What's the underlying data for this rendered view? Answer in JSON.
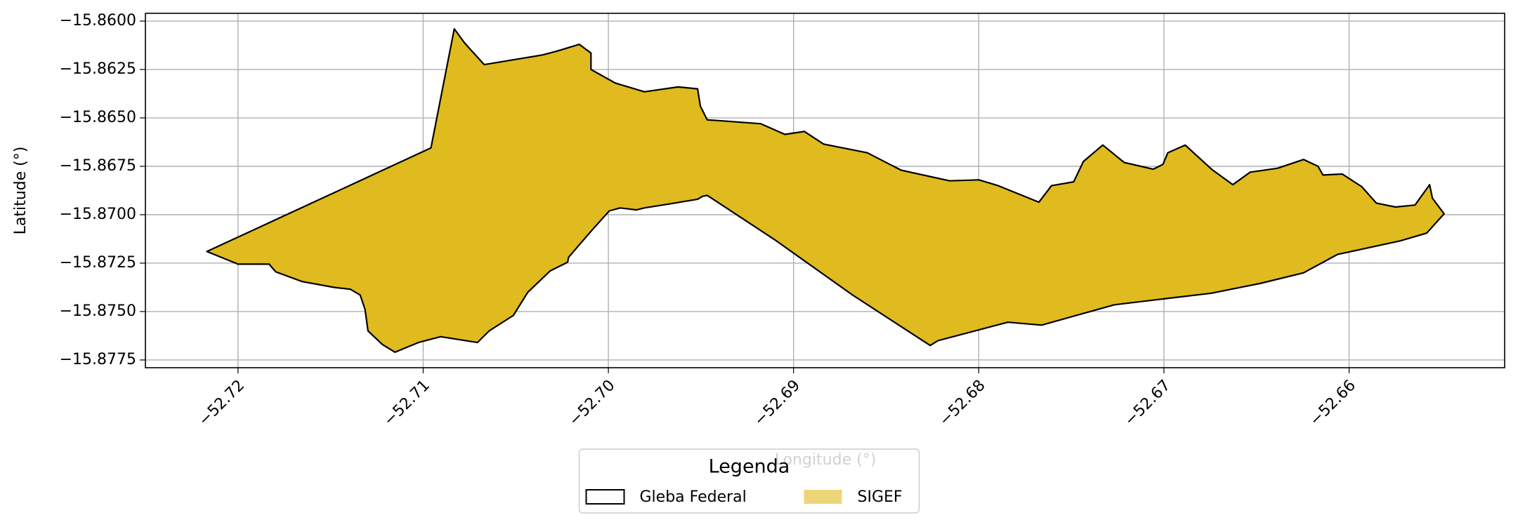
{
  "chart_data": {
    "type": "polygon",
    "xlabel": "Longitude (°)",
    "ylabel": "Latitude (°)",
    "xlim": [
      -52.725,
      -52.6516
    ],
    "ylim": [
      -15.8779,
      -15.8596
    ],
    "xticks": [
      {
        "value": -52.72,
        "label": "−52.72"
      },
      {
        "value": -52.71,
        "label": "−52.71"
      },
      {
        "value": -52.7,
        "label": "−52.70"
      },
      {
        "value": -52.69,
        "label": "−52.69"
      },
      {
        "value": -52.68,
        "label": "−52.68"
      },
      {
        "value": -52.67,
        "label": "−52.67"
      },
      {
        "value": -52.66,
        "label": "−52.66"
      }
    ],
    "yticks": [
      {
        "value": -15.86,
        "label": "−15.8600"
      },
      {
        "value": -15.8625,
        "label": "−15.8625"
      },
      {
        "value": -15.865,
        "label": "−15.8650"
      },
      {
        "value": -15.8675,
        "label": "−15.8675"
      },
      {
        "value": -15.87,
        "label": "−15.8700"
      },
      {
        "value": -15.8725,
        "label": "−15.8725"
      },
      {
        "value": -15.875,
        "label": "−15.8750"
      },
      {
        "value": -15.8775,
        "label": "−15.8775"
      }
    ],
    "grid": true,
    "legend": {
      "title": "Legenda",
      "loc": "lower center"
    },
    "series": [
      {
        "name": "Gleba Federal",
        "color": "#000000",
        "style": "outline"
      },
      {
        "name": "SIGEF",
        "color": "#dfbb1f",
        "style": "fill"
      }
    ],
    "x": [
      -52.72168,
      -52.72,
      -52.71832,
      -52.71796,
      -52.71654,
      -52.71482,
      -52.71393,
      -52.7134,
      -52.71314,
      -52.71298,
      -52.7122,
      -52.71152,
      -52.71026,
      -52.70906,
      -52.70707,
      -52.70644,
      -52.70513,
      -52.70435,
      -52.70314,
      -52.7022,
      -52.70215,
      -52.70157,
      -52.70084,
      -52.69995,
      -52.69937,
      -52.69848,
      -52.69806,
      -52.69675,
      -52.69518,
      -52.69492,
      -52.69466,
      -52.691,
      -52.68681,
      -52.68262,
      -52.6822,
      -52.67843,
      -52.6766,
      -52.67267,
      -52.67005,
      -52.66743,
      -52.66482,
      -52.66246,
      -52.66063,
      -52.65723,
      -52.65581,
      -52.65487,
      -52.6555,
      -52.65565,
      -52.65644,
      -52.65749,
      -52.65853,
      -52.65932,
      -52.66037,
      -52.66141,
      -52.66168,
      -52.66246,
      -52.66387,
      -52.66534,
      -52.66628,
      -52.66743,
      -52.66885,
      -52.66979,
      -52.67005,
      -52.67058,
      -52.67215,
      -52.6733,
      -52.67435,
      -52.67487,
      -52.67607,
      -52.67675,
      -52.67895,
      -52.68,
      -52.68157,
      -52.68419,
      -52.68602,
      -52.68838,
      -52.68942,
      -52.69047,
      -52.69178,
      -52.69387,
      -52.69466,
      -52.69503,
      -52.69518,
      -52.69623,
      -52.69806,
      -52.69963,
      -52.70094,
      -52.70094,
      -52.70157,
      -52.70277,
      -52.70356,
      -52.70513,
      -52.7067,
      -52.70775,
      -52.70832,
      -52.70958
    ],
    "y": [
      -15.8719,
      -15.87255,
      -15.87255,
      -15.87295,
      -15.87345,
      -15.87375,
      -15.87385,
      -15.87415,
      -15.8749,
      -15.876,
      -15.8767,
      -15.8771,
      -15.8766,
      -15.8763,
      -15.8766,
      -15.876,
      -15.8752,
      -15.874,
      -15.8729,
      -15.87245,
      -15.8722,
      -15.87155,
      -15.87075,
      -15.8698,
      -15.86965,
      -15.86975,
      -15.86965,
      -15.86945,
      -15.8692,
      -15.86905,
      -15.869,
      -15.8713,
      -15.87415,
      -15.87675,
      -15.8765,
      -15.87555,
      -15.8757,
      -15.87465,
      -15.87435,
      -15.87405,
      -15.87355,
      -15.873,
      -15.87205,
      -15.87135,
      -15.87095,
      -15.86995,
      -15.86915,
      -15.86845,
      -15.8695,
      -15.8696,
      -15.8694,
      -15.86855,
      -15.8679,
      -15.86795,
      -15.8675,
      -15.86715,
      -15.8676,
      -15.8678,
      -15.86845,
      -15.86765,
      -15.8664,
      -15.8668,
      -15.8674,
      -15.86765,
      -15.8673,
      -15.8664,
      -15.86725,
      -15.8683,
      -15.8685,
      -15.86935,
      -15.8685,
      -15.8682,
      -15.86825,
      -15.8677,
      -15.8668,
      -15.86635,
      -15.8657,
      -15.86585,
      -15.8653,
      -15.86515,
      -15.8651,
      -15.8644,
      -15.8635,
      -15.8634,
      -15.86365,
      -15.8632,
      -15.8625,
      -15.86165,
      -15.8612,
      -15.86155,
      -15.86175,
      -15.862,
      -15.86225,
      -15.86115,
      -15.8604,
      -15.86655
    ]
  }
}
